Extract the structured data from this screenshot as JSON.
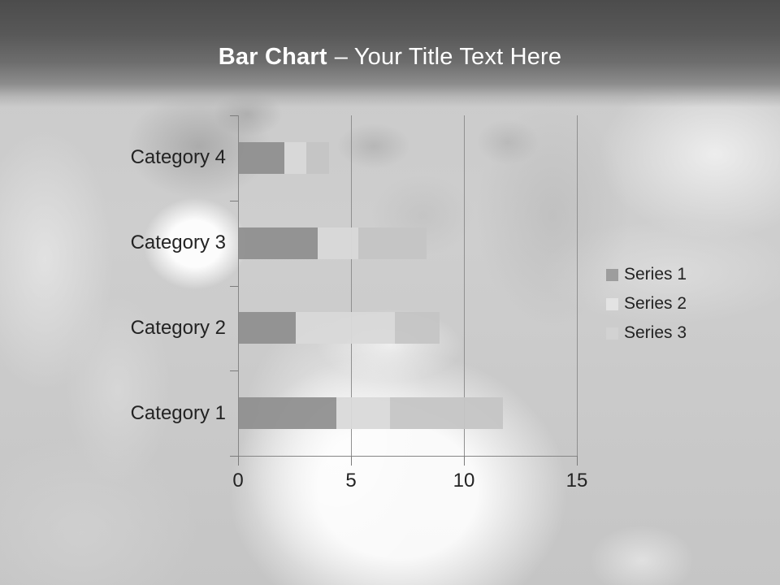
{
  "title": {
    "bold_part": "Bar Chart",
    "regular_part": "– Your Title Text Here"
  },
  "chart_data": {
    "type": "bar",
    "orientation": "horizontal",
    "stacked": true,
    "title": "Bar Chart – Your Title Text Here",
    "categories": [
      "Category 1",
      "Category 2",
      "Category 3",
      "Category 4"
    ],
    "category_order_top_to_bottom": [
      "Category 4",
      "Category 3",
      "Category 2",
      "Category 1"
    ],
    "series": [
      {
        "name": "Series 1",
        "color": "#8f8f8f",
        "legend_color": "#9d9d9d",
        "values": [
          4.3,
          2.5,
          3.5,
          2.0
        ]
      },
      {
        "name": "Series 2",
        "color": "#d9d9d9",
        "legend_color": "#e3e3e3",
        "values": [
          2.4,
          4.4,
          1.8,
          1.0
        ]
      },
      {
        "name": "Series 3",
        "color": "#c5c5c5",
        "legend_color": "#d2d2d2",
        "values": [
          5.0,
          2.0,
          3.0,
          1.0
        ]
      }
    ],
    "x_ticks": [
      "0",
      "5",
      "10",
      "15"
    ],
    "xlim": [
      0,
      15
    ],
    "xlabel": "",
    "ylabel": "",
    "grid": true,
    "legend_position": "right"
  },
  "colors": {
    "header_top": "#4c4c4c",
    "header_bottom": "#8c8c8c",
    "title_text": "#ffffff",
    "axis_line": "#868686",
    "gridline": "#909090",
    "label_text": "#232323"
  }
}
